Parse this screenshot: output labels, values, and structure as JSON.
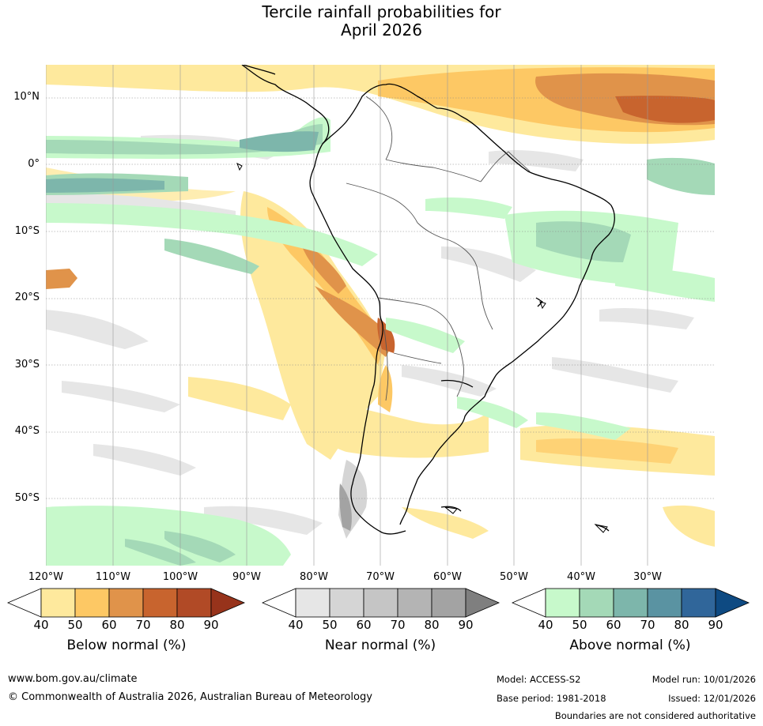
{
  "title_line1": "Tercile rainfall probabilities for",
  "title_line2": "April 2026",
  "lat_labels": [
    "10°N",
    "0°",
    "10°S",
    "20°S",
    "30°S",
    "40°S",
    "50°S"
  ],
  "lon_labels": [
    "120°W",
    "110°W",
    "100°W",
    "90°W",
    "80°W",
    "70°W",
    "60°W",
    "50°W",
    "40°W",
    "30°W"
  ],
  "colorbars": {
    "below": {
      "title": "Below normal (%)",
      "ticks": [
        "40",
        "50",
        "60",
        "70",
        "80",
        "90"
      ],
      "colors": [
        "#ffffff",
        "#fee99d",
        "#fdc864",
        "#e0934a",
        "#c8642e",
        "#b14a26",
        "#97331b"
      ]
    },
    "near": {
      "title": "Near normal (%)",
      "ticks": [
        "40",
        "50",
        "60",
        "70",
        "80",
        "90"
      ],
      "colors": [
        "#ffffff",
        "#e6e6e6",
        "#d5d5d5",
        "#c5c5c5",
        "#b4b4b4",
        "#a3a3a3",
        "#7f7f7f"
      ]
    },
    "above": {
      "title": "Above normal (%)",
      "ticks": [
        "40",
        "50",
        "60",
        "70",
        "80",
        "90"
      ],
      "colors": [
        "#ffffff",
        "#c7f9cb",
        "#a4d9b7",
        "#7db6ab",
        "#5a93a2",
        "#30669a",
        "#0e4a82"
      ]
    }
  },
  "footer": {
    "website": "www.bom.gov.au/climate",
    "copyright": "© Commonwealth of Australia 2026, Australian Bureau of Meteorology",
    "model": "Model: ACCESS-S2",
    "model_run": "Model run: 10/01/2026",
    "base_period": "Base period: 1981-2018",
    "issued": "Issued: 12/01/2026",
    "disclaimer": "Boundaries are not considered authoritative"
  }
}
